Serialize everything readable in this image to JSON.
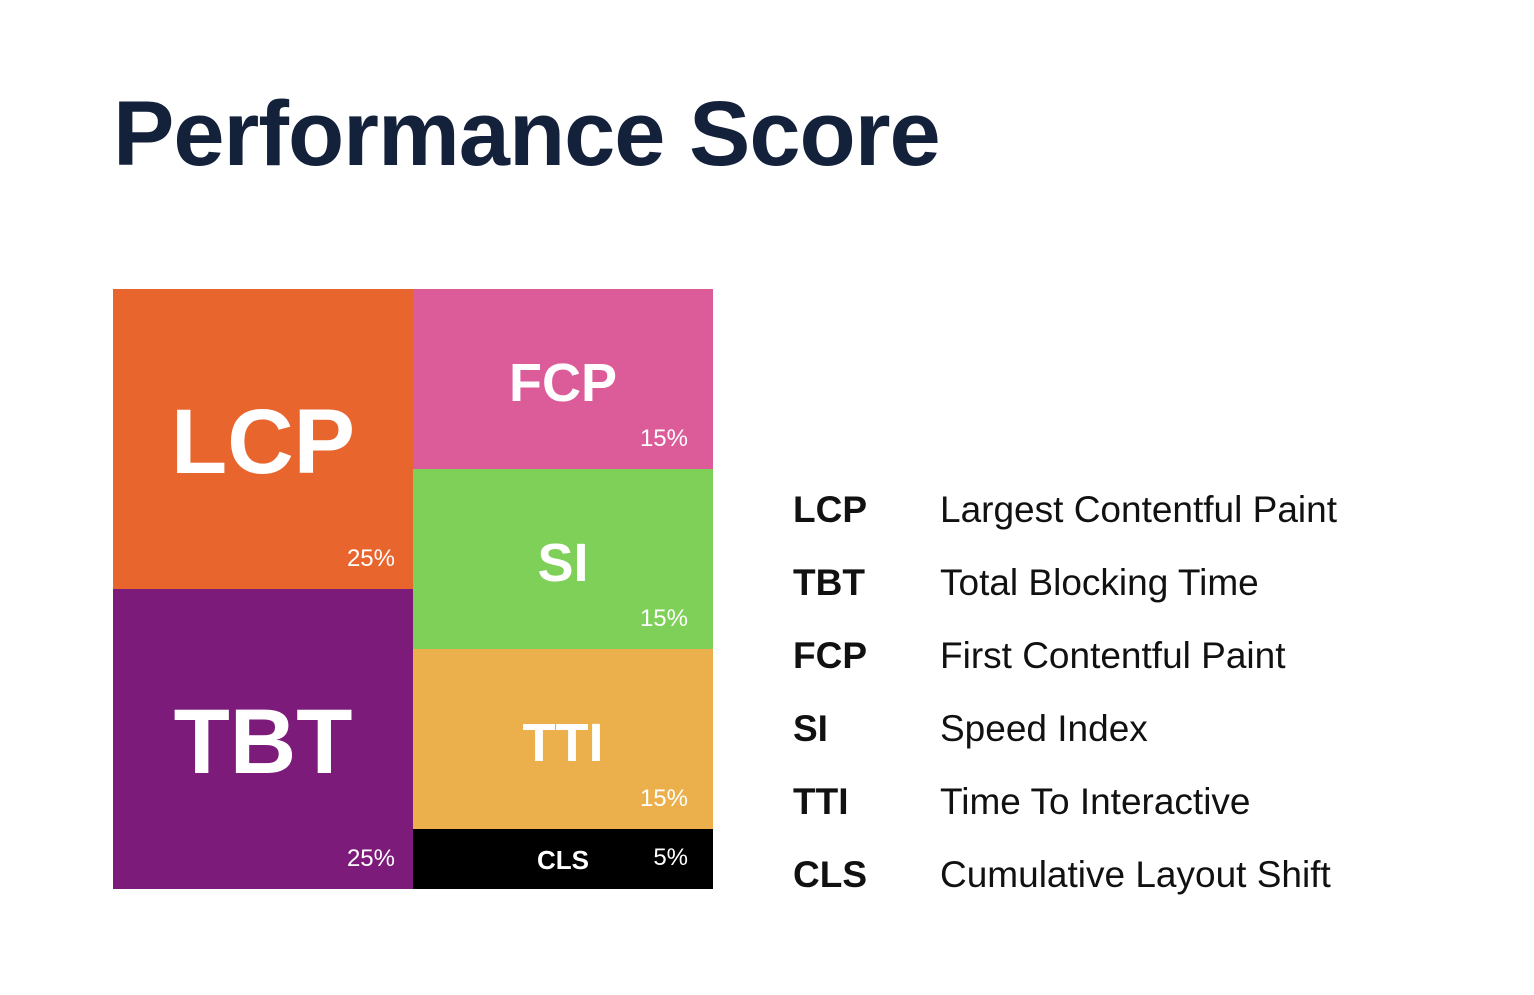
{
  "title": "Performance Score",
  "metrics": [
    {
      "abbr": "LCP",
      "weight_label": "25%",
      "weight": 25,
      "color": "#e8652e"
    },
    {
      "abbr": "TBT",
      "weight_label": "25%",
      "weight": 25,
      "color": "#7c1b7a"
    },
    {
      "abbr": "FCP",
      "weight_label": "15%",
      "weight": 15,
      "color": "#dc5c9a"
    },
    {
      "abbr": "SI",
      "weight_label": "15%",
      "weight": 15,
      "color": "#7ed059"
    },
    {
      "abbr": "TTI",
      "weight_label": "15%",
      "weight": 15,
      "color": "#ebb04b"
    },
    {
      "abbr": "CLS",
      "weight_label": "5%",
      "weight": 5,
      "color": "#000000"
    }
  ],
  "legend": [
    {
      "abbr": "LCP",
      "name": "Largest Contentful Paint"
    },
    {
      "abbr": "TBT",
      "name": "Total Blocking Time"
    },
    {
      "abbr": "FCP",
      "name": "First Contentful Paint"
    },
    {
      "abbr": "SI",
      "name": "Speed Index"
    },
    {
      "abbr": "TTI",
      "name": "Time To Interactive"
    },
    {
      "abbr": "CLS",
      "name": "Cumulative Layout Shift"
    }
  ]
}
